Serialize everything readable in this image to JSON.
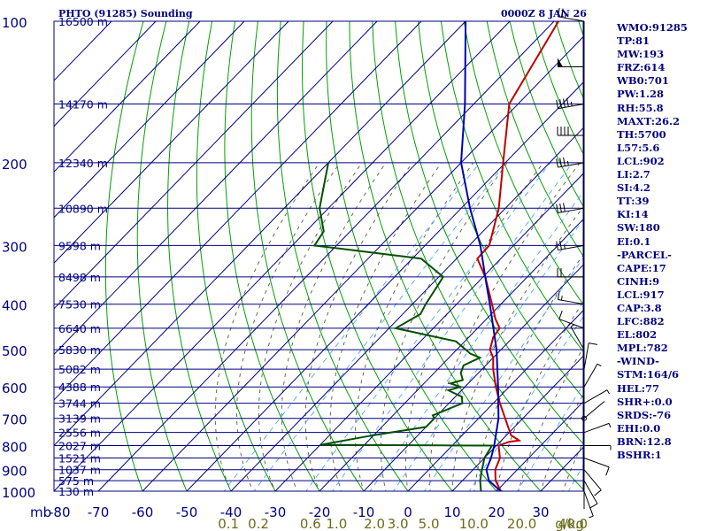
{
  "header": {
    "title": "PHTO (91285) Sounding",
    "time": "0000Z  8 JAN 26"
  },
  "indices": [
    "WMO:91285",
    "TP:81",
    "MW:193",
    "FRZ:614",
    "WB0:701",
    "PW:1.28",
    "RH:55.8",
    "MAXT:26.2",
    "TH:5700",
    "L57:5.6",
    "LCL:902",
    "LI:2.7",
    "SI:4.2",
    "TT:39",
    "KI:14",
    "SW:180",
    "EI:0.1",
    "-PARCEL-",
    "CAPE:17",
    "CINH:9",
    "LCL:917",
    "CAP:3.8",
    "LFC:882",
    "EL:802",
    "MPL:782",
    "-WIND-",
    "STM:164/6",
    "HEL:77",
    "SHR+:0.0",
    "SRDS:-76",
    "EHI:0.0",
    "BRN:12.8",
    "BSHR:1"
  ],
  "colors": {
    "navy": "#000080",
    "temperature": "#c00000",
    "dewpoint": "#005000",
    "parcel": "#0000b0",
    "dry_adiabat": "#00a000",
    "moist_adiabat": "#5a5a3a",
    "mixing_ratio": "#4da6ff",
    "mixing_label": "#6b6b1a"
  },
  "chart_data": {
    "type": "line",
    "xlim": [
      -80,
      40
    ],
    "ylim": [
      1000,
      100
    ],
    "y_scale": "log",
    "x_unit_label": "mb",
    "mixing_unit_label": "g/kg",
    "pressure_ticks": [
      "100",
      "200",
      "300",
      "400",
      "500",
      "600",
      "700",
      "800",
      "900",
      "1000"
    ],
    "temperature_ticks": [
      "-80",
      "-70",
      "-60",
      "-50",
      "-40",
      "-30",
      "-20",
      "-10",
      "0",
      "10",
      "20",
      "30"
    ],
    "height_labels": [
      {
        "p": 100,
        "label": "16500 m"
      },
      {
        "p": 150,
        "label": "14170 m"
      },
      {
        "p": 200,
        "label": "12340 m"
      },
      {
        "p": 250,
        "label": "10890 m"
      },
      {
        "p": 300,
        "label": "9598 m"
      },
      {
        "p": 350,
        "label": "8498 m"
      },
      {
        "p": 400,
        "label": "7530 m"
      },
      {
        "p": 450,
        "label": "6640 m"
      },
      {
        "p": 500,
        "label": "5830 m"
      },
      {
        "p": 550,
        "label": "5082 m"
      },
      {
        "p": 600,
        "label": "4388 m"
      },
      {
        "p": 650,
        "label": "3744 m"
      },
      {
        "p": 700,
        "label": "3139 m"
      },
      {
        "p": 750,
        "label": "2556 m"
      },
      {
        "p": 800,
        "label": "2027 m"
      },
      {
        "p": 850,
        "label": "1521 m"
      },
      {
        "p": 900,
        "label": "1037 m"
      },
      {
        "p": 950,
        "label": "575 m"
      },
      {
        "p": 1000,
        "label": "130 m"
      }
    ],
    "mixing_ratio_labels": [
      {
        "value": 0.1,
        "label": "0.1"
      },
      {
        "value": 0.2,
        "label": "0.2"
      },
      {
        "value": 0.6,
        "label": "0.6"
      },
      {
        "value": 1.0,
        "label": "1.0"
      },
      {
        "value": 2.0,
        "label": "2.0"
      },
      {
        "value": 3.0,
        "label": "3.0"
      },
      {
        "value": 5.0,
        "label": "5.0"
      },
      {
        "value": 10.0,
        "label": "10.0"
      },
      {
        "value": 20.0,
        "label": "20.0"
      },
      {
        "value": 40.0,
        "label": "40.0"
      }
    ],
    "series": [
      {
        "key": "temperature",
        "points": [
          [
            1011,
            24
          ],
          [
            1000,
            21
          ],
          [
            950,
            17.5
          ],
          [
            900,
            15
          ],
          [
            850,
            13.5
          ],
          [
            800,
            10.5
          ],
          [
            785,
            12
          ],
          [
            780,
            14
          ],
          [
            760,
            11
          ],
          [
            700,
            6
          ],
          [
            650,
            1.5
          ],
          [
            600,
            -3
          ],
          [
            550,
            -7.5
          ],
          [
            520,
            -10
          ],
          [
            500,
            -12.5
          ],
          [
            470,
            -14.5
          ],
          [
            450,
            -15
          ],
          [
            430,
            -18
          ],
          [
            400,
            -22
          ],
          [
            350,
            -29.5
          ],
          [
            320,
            -35.3
          ],
          [
            300,
            -35.5
          ],
          [
            250,
            -41.5
          ],
          [
            200,
            -50.5
          ],
          [
            150,
            -62
          ],
          [
            100,
            -69
          ]
        ]
      },
      {
        "key": "dewpoint",
        "points": [
          [
            1011,
            17
          ],
          [
            1000,
            16.5
          ],
          [
            950,
            14
          ],
          [
            900,
            12
          ],
          [
            850,
            10
          ],
          [
            800,
            9
          ],
          [
            799,
            -2
          ],
          [
            797,
            -30
          ],
          [
            760,
            -20
          ],
          [
            730,
            -10
          ],
          [
            700,
            -10
          ],
          [
            690,
            -11
          ],
          [
            650,
            -7
          ],
          [
            630,
            -8.5
          ],
          [
            610,
            -13
          ],
          [
            600,
            -11
          ],
          [
            590,
            -14
          ],
          [
            580,
            -12
          ],
          [
            560,
            -14
          ],
          [
            540,
            -15
          ],
          [
            520,
            -13
          ],
          [
            510,
            -16
          ],
          [
            480,
            -22
          ],
          [
            450,
            -38.5
          ],
          [
            420,
            -36
          ],
          [
            400,
            -37
          ],
          [
            350,
            -39
          ],
          [
            320,
            -48
          ],
          [
            300,
            -75
          ],
          [
            280,
            -76
          ],
          [
            250,
            -82
          ],
          [
            200,
            -90
          ]
        ]
      },
      {
        "key": "parcel",
        "points": [
          [
            1011,
            22
          ],
          [
            950,
            16
          ],
          [
            900,
            13
          ],
          [
            850,
            11.5
          ],
          [
            800,
            9.5
          ],
          [
            700,
            4.5
          ],
          [
            600,
            -2.5
          ],
          [
            500,
            -11
          ],
          [
            400,
            -22.5
          ],
          [
            350,
            -29.5
          ],
          [
            300,
            -37.5
          ],
          [
            250,
            -48
          ],
          [
            200,
            -60
          ],
          [
            150,
            -72
          ],
          [
            100,
            -90
          ]
        ]
      }
    ],
    "wind_barbs": [
      {
        "p": 1000,
        "dir": 160,
        "spd": 5
      },
      {
        "p": 950,
        "dir": 150,
        "spd": 10
      },
      {
        "p": 900,
        "dir": 140,
        "spd": 10
      },
      {
        "p": 850,
        "dir": 110,
        "spd": 10
      },
      {
        "p": 800,
        "dir": 90,
        "spd": 5
      },
      {
        "p": 750,
        "dir": 70,
        "spd": 5
      },
      {
        "p": 700,
        "dir": 50,
        "spd": 0
      },
      {
        "p": 650,
        "dir": 60,
        "spd": 5
      },
      {
        "p": 600,
        "dir": 30,
        "spd": 5
      },
      {
        "p": 550,
        "dir": 10,
        "spd": 10
      },
      {
        "p": 500,
        "dir": 330,
        "spd": 5
      },
      {
        "p": 450,
        "dir": 290,
        "spd": 10
      },
      {
        "p": 400,
        "dir": 280,
        "spd": 15
      },
      {
        "p": 350,
        "dir": 270,
        "spd": 20
      },
      {
        "p": 300,
        "dir": 260,
        "spd": 25
      },
      {
        "p": 250,
        "dir": 260,
        "spd": 30
      },
      {
        "p": 200,
        "dir": 260,
        "spd": 35
      },
      {
        "p": 175,
        "dir": 270,
        "spd": 40
      },
      {
        "p": 150,
        "dir": 260,
        "spd": 45
      },
      {
        "p": 125,
        "dir": 270,
        "spd": 50
      },
      {
        "p": 100,
        "dir": 280,
        "spd": 25
      }
    ]
  }
}
